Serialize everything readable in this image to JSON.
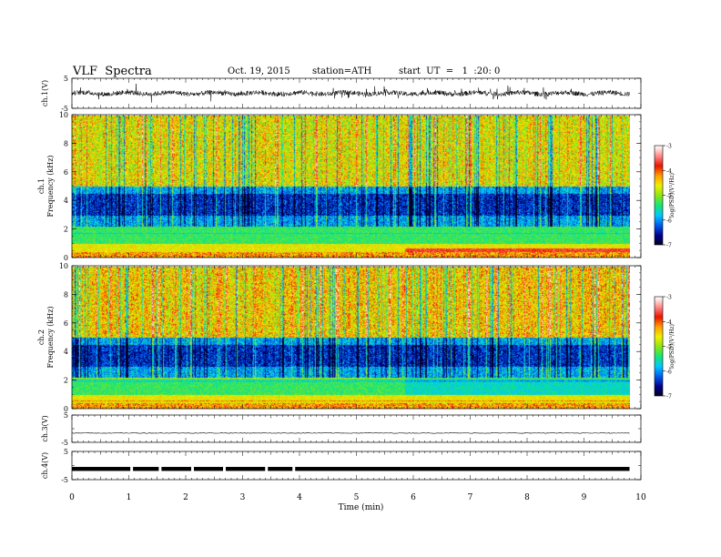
{
  "header": {
    "title": "VLF  Spectra",
    "date": "Oct. 19, 2015",
    "station": "station=ATH",
    "start": "start  UT  =   1  :20: 0"
  },
  "chart_data": [
    {
      "type": "line",
      "panel": "ch1",
      "ylabel": "ch.1(V)",
      "ylim": [
        -5,
        5
      ],
      "yticks": [
        "5",
        "-5"
      ],
      "description_values": {
        "baseline": 0,
        "typical_range": [
          -1.5,
          1.5
        ]
      }
    },
    {
      "type": "heatmap",
      "panel": "spec1",
      "ylabel_lines": [
        "ch.1",
        "Frequency  (kHz)"
      ],
      "ylim": [
        0,
        10
      ],
      "yticks": [
        "0",
        "2",
        "4",
        "6",
        "8",
        "10"
      ],
      "colorbar": {
        "label": "log(PSD)(V²/Hz)",
        "range": [
          -7,
          -3
        ],
        "ticks": [
          "-3",
          "-4",
          "-5",
          "-6",
          "-7"
        ]
      },
      "change_time_min": 5.85
    },
    {
      "type": "heatmap",
      "panel": "spec2",
      "ylabel_lines": [
        "ch.2",
        "Frequency  (kHz)"
      ],
      "ylim": [
        0,
        10
      ],
      "yticks": [
        "0",
        "2",
        "4",
        "6",
        "8",
        "10"
      ],
      "colorbar": {
        "label": "log(PSD)(V²/Hz)",
        "range": [
          -7,
          -3
        ],
        "ticks": [
          "-3",
          "-4",
          "-5",
          "-6",
          "-7"
        ]
      },
      "change_time_min": 5.85
    },
    {
      "type": "line",
      "panel": "ch3",
      "ylabel": "ch.3(V)",
      "ylim": [
        -5,
        5
      ],
      "yticks": [
        "5",
        "-5"
      ],
      "description_values": {
        "baseline": -1.6
      }
    },
    {
      "type": "line",
      "panel": "ch4",
      "ylabel": "ch.4(V)",
      "ylim": [
        -5,
        5
      ],
      "yticks": [
        "5",
        "-5"
      ],
      "description_values": {
        "baseline": -1.2,
        "gaps_min": [
          1.05,
          1.55,
          2.12,
          2.68,
          3.42,
          3.9
        ]
      }
    }
  ],
  "xaxis": {
    "label": "Time  (min)",
    "xlim": [
      0,
      10
    ],
    "ticks": [
      "0",
      "1",
      "2",
      "3",
      "4",
      "5",
      "6",
      "7",
      "8",
      "9",
      "10"
    ],
    "data_end_min": 9.8
  }
}
